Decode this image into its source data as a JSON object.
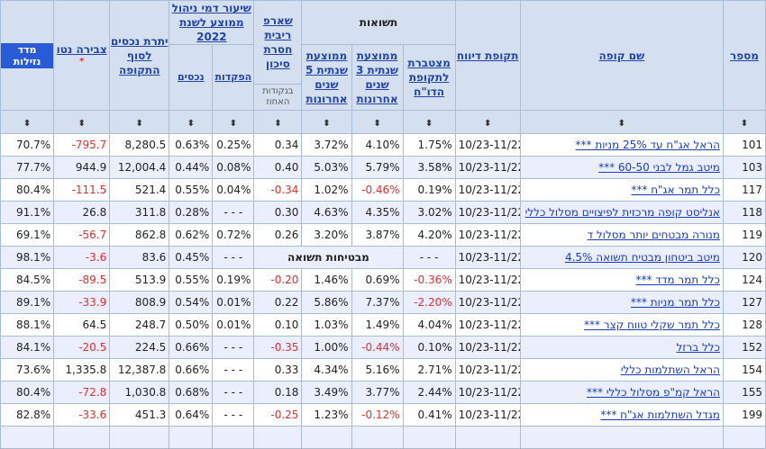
{
  "header": {
    "returns_group": "תשואות",
    "cols": {
      "num": "מספר",
      "name": "שם קופה",
      "period": "תקופת דיווח",
      "cum": "מצטברת לתקופת הדו\"ח",
      "avg3": "ממוצעת שנתית 3 שנים אחרונות",
      "avg5": "ממוצעת שנתית 5 שנים אחרונות",
      "sharpe": "שארפ ריבית חסרת סיכון",
      "fees": "שיעור דמי ניהול ממוצע לשנת 2022",
      "assets": "יתרת נכסים לסוף התקופה",
      "netflow": "צבירה נטו",
      "liq": "מדד נזילות"
    },
    "sub": {
      "sharpe_unit": "בנקודות האחוז",
      "fees_deposits": "הפקדות",
      "fees_assets": "נכסים"
    },
    "netflow_star": "*",
    "sort_glyph": "⬍"
  },
  "rows": [
    {
      "num": "101",
      "name": "הראל אג\"ח עד 25% מניות ***",
      "period": "10/23-11/22",
      "cum": "1.75%",
      "avg3": "4.10%",
      "avg5": "3.72%",
      "sharpe": "0.34",
      "dep": "0.25%",
      "ast": "0.63%",
      "assets": "8,280.5",
      "flow": "-795.7",
      "liq": "70.7%"
    },
    {
      "num": "103",
      "name": "מיטב גמל לבני 60-50 ***",
      "period": "10/23-11/22",
      "cum": "3.58%",
      "avg3": "5.79%",
      "avg5": "5.03%",
      "sharpe": "0.40",
      "dep": "0.08%",
      "ast": "0.44%",
      "assets": "12,004.4",
      "flow": "944.9",
      "liq": "77.7%"
    },
    {
      "num": "117",
      "name": "כלל תמר אג\"ח ***",
      "period": "10/23-11/22",
      "cum": "0.19%",
      "avg3": "-0.46%",
      "avg5": "1.02%",
      "sharpe": "-0.34",
      "dep": "0.04%",
      "ast": "0.55%",
      "assets": "521.4",
      "flow": "-111.5",
      "liq": "80.4%"
    },
    {
      "num": "118",
      "name": "אנליסט קופה מרכזית לפיצויים מסלול כללי",
      "period": "10/23-11/22",
      "cum": "3.02%",
      "avg3": "4.35%",
      "avg5": "4.63%",
      "sharpe": "0.30",
      "dep": "- - -",
      "ast": "0.28%",
      "assets": "311.8",
      "flow": "26.8",
      "liq": "91.1%"
    },
    {
      "num": "119",
      "name": "מנורה מבטחים יותר מסלול ד",
      "period": "10/23-11/22",
      "cum": "4.20%",
      "avg3": "3.87%",
      "avg5": "3.20%",
      "sharpe": "0.26",
      "dep": "0.72%",
      "ast": "0.62%",
      "assets": "862.8",
      "flow": "-56.7",
      "liq": "69.1%"
    },
    {
      "num": "120",
      "name": "מיטב ביטחון מבטיח תשואה 4.5%",
      "period": "10/23-11/22",
      "cum": "- - -",
      "guaranteed": "מבטיחות תשואה",
      "dep": "- - -",
      "ast": "0.45%",
      "assets": "83.6",
      "flow": "-3.6",
      "liq": "98.1%"
    },
    {
      "num": "124",
      "name": "כלל תמר מדד ***",
      "period": "10/23-11/22",
      "cum": "-0.36%",
      "avg3": "0.69%",
      "avg5": "1.46%",
      "sharpe": "-0.20",
      "dep": "0.19%",
      "ast": "0.55%",
      "assets": "513.9",
      "flow": "-89.5",
      "liq": "84.5%"
    },
    {
      "num": "127",
      "name": "כלל תמר מניות ***",
      "period": "10/23-11/22",
      "cum": "-2.20%",
      "avg3": "7.37%",
      "avg5": "5.86%",
      "sharpe": "0.22",
      "dep": "0.01%",
      "ast": "0.54%",
      "assets": "808.9",
      "flow": "-33.9",
      "liq": "89.1%"
    },
    {
      "num": "128",
      "name": "כלל תמר שקלי טווח קצר ***",
      "period": "10/23-11/22",
      "cum": "4.04%",
      "avg3": "1.49%",
      "avg5": "1.03%",
      "sharpe": "0.10",
      "dep": "0.01%",
      "ast": "0.50%",
      "assets": "248.7",
      "flow": "64.5",
      "liq": "88.1%"
    },
    {
      "num": "152",
      "name": "כלל ברזל",
      "period": "10/23-11/22",
      "cum": "0.10%",
      "avg3": "-0.44%",
      "avg5": "1.00%",
      "sharpe": "-0.35",
      "dep": "- - -",
      "ast": "0.66%",
      "assets": "224.5",
      "flow": "-20.5",
      "liq": "84.1%"
    },
    {
      "num": "154",
      "name": "הראל השתלמות כללי",
      "period": "10/23-11/22",
      "cum": "2.71%",
      "avg3": "5.16%",
      "avg5": "4.34%",
      "sharpe": "0.33",
      "dep": "- - -",
      "ast": "0.66%",
      "assets": "12,387.8",
      "flow": "1,335.8",
      "liq": "73.6%"
    },
    {
      "num": "155",
      "name": "הראל קמ\"פ מסלול כללי ***",
      "period": "10/23-11/22",
      "cum": "2.44%",
      "avg3": "3.77%",
      "avg5": "3.49%",
      "sharpe": "0.18",
      "dep": "- - -",
      "ast": "0.68%",
      "assets": "1,030.8",
      "flow": "-72.8",
      "liq": "80.4%"
    },
    {
      "num": "199",
      "name": "מגדל השתלמות אג\"ח ***",
      "period": "10/23-11/22",
      "cum": "0.41%",
      "avg3": "-0.12%",
      "avg5": "1.23%",
      "sharpe": "-0.25",
      "dep": "- - -",
      "ast": "0.64%",
      "assets": "451.3",
      "flow": "-33.6",
      "liq": "82.8%"
    },
    {
      "num": "",
      "name": "",
      "period": "",
      "cum": "",
      "avg3": "",
      "avg5": "",
      "sharpe": "",
      "dep": "",
      "ast": "",
      "assets": "",
      "flow": "",
      "liq": ""
    }
  ]
}
